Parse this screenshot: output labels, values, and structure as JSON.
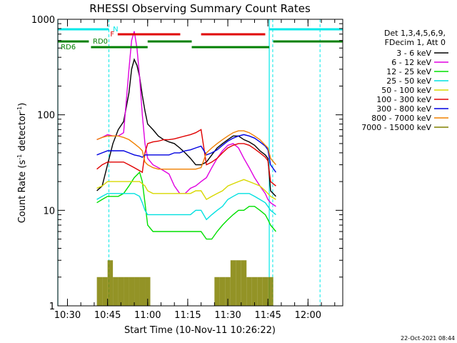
{
  "chart_data": {
    "type": "line",
    "title": "RHESSI Observing Summary Count Rates",
    "xlabel": "Start Time (10-Nov-11 10:26:22)",
    "ylabel": "Count Rate (s⁻¹ detector⁻¹)",
    "ylabel_main": "Count Rate (s",
    "ylabel_sup1": "-1",
    "ylabel_mid": " detector",
    "ylabel_sup2": "-1",
    "ylabel_end": ")",
    "y_scale": "log",
    "ylim": [
      1,
      1000
    ],
    "xlim_minutes": [
      26.4,
      133.0
    ],
    "x_ticks": [
      {
        "m": 30,
        "label": "10:30"
      },
      {
        "m": 45,
        "label": "10:45"
      },
      {
        "m": 60,
        "label": "11:00"
      },
      {
        "m": 75,
        "label": "11:15"
      },
      {
        "m": 90,
        "label": "11:30"
      },
      {
        "m": 105,
        "label": "11:45"
      },
      {
        "m": 120,
        "label": "12:00"
      }
    ],
    "y_ticks": [
      {
        "v": 1,
        "label": "1"
      },
      {
        "v": 10,
        "label": "10"
      },
      {
        "v": 100,
        "label": "100"
      },
      {
        "v": 1000,
        "label": "1000"
      }
    ],
    "legend_header": [
      "Det 1,3,4,5,6,9,",
      "FDecim 1, Att 0"
    ],
    "legend_position": "right",
    "series": [
      {
        "name": "3 - 6 keV",
        "color": "#000000",
        "x": [
          41,
          43,
          45,
          47,
          49,
          51,
          53,
          54,
          55,
          56,
          57,
          58,
          59,
          60,
          62,
          64,
          66,
          68,
          70,
          72,
          74,
          76,
          78,
          80,
          82,
          84,
          86,
          88,
          90,
          92,
          94,
          96,
          98,
          100,
          102,
          104,
          105,
          106,
          108
        ],
        "y": [
          16,
          18,
          30,
          50,
          70,
          85,
          170,
          300,
          380,
          330,
          250,
          160,
          110,
          80,
          70,
          60,
          55,
          52,
          50,
          45,
          40,
          35,
          30,
          30,
          32,
          38,
          45,
          50,
          55,
          60,
          60,
          55,
          52,
          48,
          42,
          38,
          35,
          16,
          14
        ]
      },
      {
        "name": "6 - 12 keV",
        "color": "#e000e0",
        "x": [
          41,
          43,
          45,
          47,
          49,
          51,
          53,
          54,
          55,
          56,
          57,
          58,
          59,
          60,
          62,
          64,
          66,
          68,
          70,
          72,
          74,
          76,
          78,
          80,
          82,
          84,
          86,
          88,
          90,
          92,
          94,
          96,
          98,
          100,
          102,
          104,
          105,
          106,
          108
        ],
        "y": [
          55,
          58,
          62,
          60,
          60,
          65,
          300,
          600,
          750,
          500,
          250,
          100,
          50,
          35,
          30,
          28,
          26,
          24,
          18,
          15,
          15,
          17,
          18,
          20,
          22,
          28,
          35,
          42,
          48,
          50,
          45,
          35,
          28,
          22,
          18,
          15,
          13,
          12,
          11
        ]
      },
      {
        "name": "12 - 25 keV",
        "color": "#00e000",
        "x": [
          41,
          43,
          45,
          47,
          49,
          51,
          53,
          55,
          57,
          58,
          59,
          60,
          62,
          64,
          66,
          68,
          70,
          72,
          74,
          76,
          78,
          80,
          82,
          84,
          86,
          88,
          90,
          92,
          94,
          96,
          98,
          100,
          102,
          104,
          105,
          106,
          108
        ],
        "y": [
          12,
          13,
          14,
          14,
          14,
          15,
          18,
          22,
          25,
          20,
          12,
          7,
          6,
          6,
          6,
          6,
          6,
          6,
          6,
          6,
          6,
          6,
          5,
          5,
          6,
          7,
          8,
          9,
          10,
          10,
          11,
          11,
          10,
          9,
          8,
          7,
          6
        ]
      },
      {
        "name": "25 - 50 keV",
        "color": "#00e0e0",
        "x": [
          41,
          43,
          45,
          47,
          49,
          51,
          53,
          55,
          57,
          58,
          59,
          60,
          62,
          64,
          66,
          68,
          70,
          72,
          74,
          76,
          78,
          80,
          82,
          84,
          86,
          88,
          90,
          92,
          94,
          96,
          98,
          100,
          102,
          104,
          105,
          106,
          108
        ],
        "y": [
          13,
          14,
          15,
          15,
          15,
          15,
          15,
          15,
          14,
          12,
          10,
          9,
          9,
          9,
          9,
          9,
          9,
          9,
          9,
          9,
          10,
          10,
          8,
          9,
          10,
          11,
          13,
          14,
          15,
          15,
          15,
          14,
          13,
          12,
          11,
          10,
          9
        ]
      },
      {
        "name": "50 - 100 keV",
        "color": "#d8d800",
        "x": [
          41,
          43,
          45,
          47,
          49,
          51,
          53,
          55,
          57,
          58,
          59,
          60,
          62,
          64,
          66,
          68,
          70,
          72,
          74,
          76,
          78,
          80,
          82,
          84,
          86,
          88,
          90,
          92,
          94,
          96,
          98,
          100,
          102,
          104,
          105,
          106,
          108
        ],
        "y": [
          17,
          18,
          20,
          20,
          20,
          20,
          20,
          20,
          20,
          19,
          18,
          16,
          15,
          15,
          15,
          15,
          15,
          15,
          15,
          15,
          16,
          16,
          13,
          14,
          15,
          16,
          18,
          19,
          20,
          21,
          20,
          19,
          18,
          16,
          15,
          14,
          13
        ]
      },
      {
        "name": "100 - 300 keV",
        "color": "#e00000",
        "x": [
          41,
          43,
          45,
          47,
          49,
          51,
          53,
          55,
          57,
          58,
          59,
          60,
          62,
          64,
          66,
          68,
          70,
          72,
          74,
          76,
          78,
          80,
          82,
          84,
          86,
          88,
          90,
          92,
          94,
          96,
          98,
          100,
          102,
          104,
          105,
          106,
          108
        ],
        "y": [
          27,
          30,
          32,
          32,
          32,
          32,
          30,
          28,
          26,
          25,
          40,
          50,
          52,
          53,
          55,
          55,
          56,
          58,
          60,
          62,
          65,
          70,
          30,
          32,
          35,
          40,
          45,
          48,
          50,
          50,
          48,
          44,
          40,
          36,
          33,
          20,
          18
        ]
      },
      {
        "name": "300 - 800 keV",
        "color": "#0000e0",
        "x": [
          41,
          43,
          45,
          47,
          49,
          51,
          53,
          55,
          57,
          58,
          59,
          60,
          62,
          64,
          66,
          68,
          70,
          72,
          74,
          76,
          78,
          80,
          82,
          84,
          86,
          88,
          90,
          92,
          94,
          96,
          98,
          100,
          102,
          104,
          105,
          106,
          108
        ],
        "y": [
          38,
          40,
          42,
          42,
          42,
          42,
          40,
          38,
          37,
          36,
          38,
          38,
          38,
          38,
          38,
          38,
          40,
          40,
          42,
          43,
          45,
          47,
          38,
          40,
          43,
          48,
          53,
          57,
          60,
          62,
          60,
          57,
          52,
          47,
          43,
          30,
          25
        ]
      },
      {
        "name": "800 - 7000 keV",
        "color": "#f08000",
        "x": [
          41,
          43,
          45,
          47,
          49,
          51,
          53,
          55,
          57,
          58,
          59,
          60,
          62,
          64,
          66,
          68,
          70,
          72,
          74,
          76,
          78,
          80,
          82,
          84,
          86,
          88,
          90,
          92,
          94,
          96,
          98,
          100,
          102,
          104,
          105,
          106,
          108
        ],
        "y": [
          55,
          58,
          60,
          60,
          60,
          58,
          55,
          50,
          45,
          42,
          32,
          30,
          28,
          27,
          27,
          27,
          27,
          27,
          27,
          27,
          27,
          28,
          40,
          45,
          50,
          55,
          60,
          65,
          68,
          68,
          65,
          60,
          55,
          48,
          45,
          35,
          30
        ]
      },
      {
        "name": "7000 - 15000 keV",
        "color": "#808000",
        "x": [
          41,
          43,
          45,
          47,
          49,
          51,
          53,
          55,
          57,
          59,
          61,
          63,
          65,
          67,
          69,
          71,
          73,
          75,
          77,
          79,
          81,
          83,
          85,
          87,
          89,
          91,
          93,
          95,
          97,
          99,
          101,
          103,
          105,
          107,
          108
        ],
        "y": [
          2,
          2,
          3,
          2,
          2,
          2,
          2,
          2,
          2,
          2,
          1,
          1,
          1,
          1,
          1,
          1,
          1,
          1,
          1,
          1,
          1,
          1,
          2,
          2,
          2,
          3,
          3,
          3,
          2,
          2,
          2,
          2,
          2,
          1,
          1
        ]
      }
    ],
    "flags": [
      {
        "label": "N",
        "color": "#00e8e8",
        "segments": [
          [
            26.4,
            45.5
          ],
          [
            105.5,
            133.0
          ]
        ]
      },
      {
        "label": "F",
        "color": "#e00000",
        "segments": [
          [
            48.8,
            72.2
          ],
          [
            80.0,
            104.0
          ]
        ]
      },
      {
        "label": "RD0",
        "color": "#008000",
        "segments": [
          [
            26.4,
            38.0
          ],
          [
            60.0,
            76.5
          ],
          [
            107.0,
            133.0
          ]
        ]
      },
      {
        "label": "RD6",
        "color": "#008000",
        "segments": [
          [
            38.8,
            60.0
          ],
          [
            76.5,
            105.5
          ]
        ]
      }
    ],
    "cyan_markers": {
      "solid": [
        26.4,
        105.5
      ],
      "dashed": [
        45.5,
        106.8,
        124.5
      ]
    },
    "timestamp": "22-Oct-2021 08:44"
  }
}
